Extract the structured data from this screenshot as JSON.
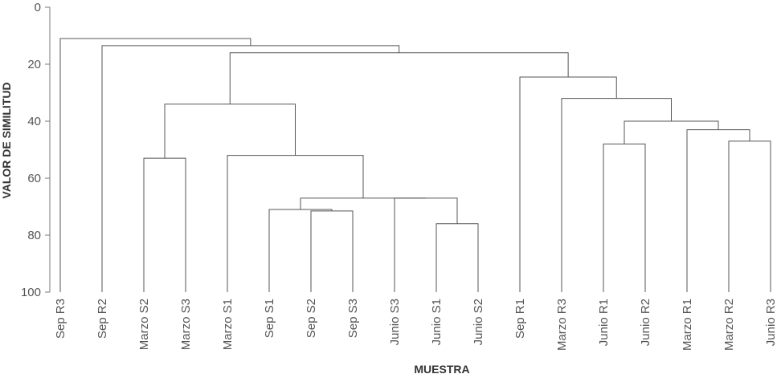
{
  "chart_data": {
    "type": "dendrogram",
    "xlabel": "MUESTRA",
    "ylabel": "VALOR DE SIMILITUD",
    "ylim": [
      0,
      100
    ],
    "y_inverted": true,
    "y_ticks": [
      0,
      20,
      40,
      60,
      80,
      100
    ],
    "leaves": [
      "Sep R3",
      "Sep R2",
      "Marzo S2",
      "Marzo S3",
      "Marzo S1",
      "Sep S1",
      "Sep S2",
      "Sep S3",
      "Junio S3",
      "Junio S1",
      "Junio S2",
      "Sep R1",
      "Marzo R3",
      "Junio R1",
      "Junio R2",
      "Marzo R1",
      "Marzo R2",
      "Junio R3"
    ],
    "merges": [
      {
        "left": "Sep S2",
        "right": "Sep S3",
        "similarity": 71.5
      },
      {
        "left": "Junio S1",
        "right": "Junio S2",
        "similarity": 76
      },
      {
        "left": "Sep S1",
        "right": "M1",
        "similarity": 71
      },
      {
        "left": "Junio S3",
        "right": "M2",
        "similarity": 67
      },
      {
        "left": "M3",
        "right": "M4",
        "similarity": 67
      },
      {
        "left": "Marzo S1",
        "right": "M5",
        "similarity": 52
      },
      {
        "left": "Marzo S2",
        "right": "Marzo S3",
        "similarity": 53
      },
      {
        "left": "M7",
        "right": "M6",
        "similarity": 34
      },
      {
        "left": "Junio R1",
        "right": "Junio R2",
        "similarity": 48
      },
      {
        "left": "Marzo R2",
        "right": "Junio R3",
        "similarity": 47
      },
      {
        "left": "Marzo R1",
        "right": "M10",
        "similarity": 43
      },
      {
        "left": "M9",
        "right": "M11",
        "similarity": 40
      },
      {
        "left": "Marzo R3",
        "right": "M12",
        "similarity": 32
      },
      {
        "left": "Sep R1",
        "right": "M13",
        "similarity": 24.5
      },
      {
        "left": "M8",
        "right": "M14",
        "similarity": 16
      },
      {
        "left": "Sep R2",
        "right": "M15",
        "similarity": 13.5
      },
      {
        "left": "Sep R3",
        "right": "M16",
        "similarity": 11
      }
    ]
  }
}
